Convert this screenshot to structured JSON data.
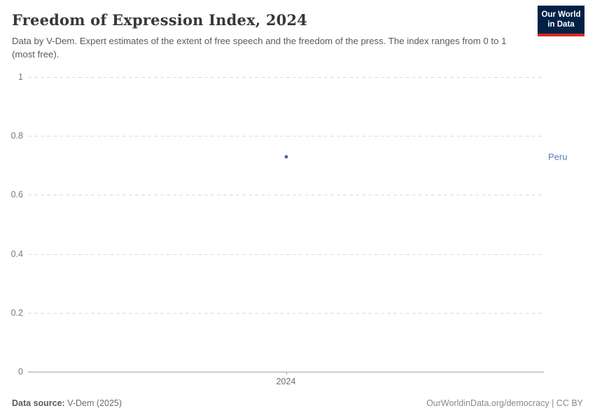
{
  "header": {
    "title": "Freedom of Expression Index, 2024",
    "subtitle": "Data by V-Dem. Expert estimates of the extent of free speech and the freedom of the press. The index ranges from 0 to 1 (most free).",
    "logo": {
      "line1": "Our World",
      "line2": "in Data",
      "bg_color": "#002147",
      "accent_color": "#d42b21"
    }
  },
  "chart_data": {
    "type": "scatter",
    "title": "Freedom of Expression Index, 2024",
    "x": [
      2024
    ],
    "xtick_labels": [
      "2024"
    ],
    "series": [
      {
        "name": "Peru",
        "values": [
          0.73
        ],
        "color": "#4c6a9c",
        "label_color": "#5b7eb5"
      }
    ],
    "xlabel": "",
    "ylabel": "",
    "ylim": [
      0,
      1
    ],
    "yticks": [
      0,
      0.2,
      0.4,
      0.6,
      0.8,
      1
    ],
    "ytick_labels": [
      "0",
      "0.2",
      "0.4",
      "0.6",
      "0.8",
      "1"
    ],
    "grid": "dashed horizontal gridlines, solid baseline at 0",
    "legend_position": "entity label right of plot"
  },
  "footer": {
    "source_label": "Data source:",
    "source_value": "V-Dem (2025)",
    "credit": "OurWorldinData.org/democracy | CC BY"
  }
}
